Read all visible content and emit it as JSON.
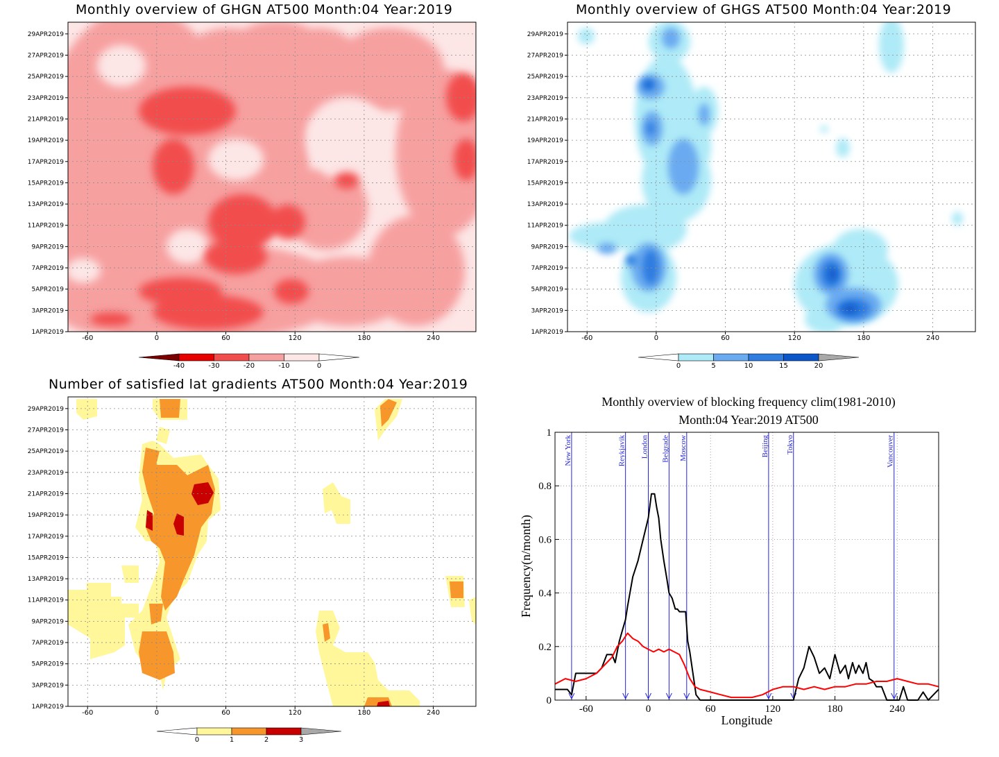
{
  "panels": {
    "ghgn": {
      "title": "Monthly overview of GHGN AT500 Month:04 Year:2019",
      "colorbar": {
        "labels": [
          "-40",
          "-30",
          "-20",
          "-10",
          "0"
        ],
        "colors": [
          "#7a0000",
          "#e60000",
          "#f24d4d",
          "#f7a0a0",
          "#fde6e6",
          "#ffffff"
        ]
      }
    },
    "ghgs": {
      "title": "Monthly overview of GHGS AT500 Month:04 Year:2019",
      "colorbar": {
        "labels": [
          "0",
          "5",
          "10",
          "15",
          "20"
        ],
        "colors": [
          "#ffffff",
          "#aeeaf7",
          "#6aaaf0",
          "#2f7de0",
          "#0b56c8",
          "#a8a8a8"
        ]
      }
    },
    "gradients": {
      "title": "Number of satisfied lat gradients AT500 Month:04 Year:2019",
      "colorbar": {
        "labels": [
          "0",
          "1",
          "2",
          "3"
        ],
        "colors": [
          "#ffffff",
          "#fff799",
          "#f7962a",
          "#c80000",
          "#a8a8a8"
        ]
      }
    },
    "frequency": {
      "title_line1": "Monthly overview of blocking frequency clim(1981-2010)",
      "title_line2": "Month:04 Year:2019  AT500"
    }
  },
  "hovmoller_axes": {
    "y_ticks": [
      "1APR2019",
      "3APR2019",
      "5APR2019",
      "7APR2019",
      "9APR2019",
      "11APR2019",
      "13APR2019",
      "15APR2019",
      "17APR2019",
      "19APR2019",
      "21APR2019",
      "23APR2019",
      "25APR2019",
      "27APR2019",
      "29APR2019"
    ],
    "x_ticks": [
      "-60",
      "0",
      "60",
      "120",
      "180",
      "240"
    ],
    "x_tick_values": [
      -60,
      0,
      60,
      120,
      180,
      240
    ],
    "x_range": [
      -77,
      277
    ]
  },
  "chart_data": [
    {
      "type": "heatmap",
      "title": "Monthly overview of GHGN AT500 Month:04 Year:2019",
      "x_range": [
        -77,
        277
      ],
      "y_range": [
        "1APR2019",
        "30APR2019"
      ],
      "levels": [
        -40,
        -30,
        -20,
        -10,
        0
      ],
      "note_values": "shading mostly between -20 and 0, with -30 to -20 patches"
    },
    {
      "type": "heatmap",
      "title": "Monthly overview of GHGS AT500 Month:04 Year:2019",
      "x_range": [
        -77,
        277
      ],
      "y_range": [
        "1APR2019",
        "30APR2019"
      ],
      "levels": [
        0,
        5,
        10,
        15,
        20
      ]
    },
    {
      "type": "heatmap",
      "title": "Number of satisfied lat gradients AT500 Month:04 Year:2019",
      "x_range": [
        -77,
        277
      ],
      "y_range": [
        "1APR2019",
        "30APR2019"
      ],
      "levels": [
        0,
        1,
        2,
        3
      ]
    },
    {
      "type": "line",
      "title": "Monthly overview of blocking frequency clim(1981-2010)",
      "subtitle": "Month:04 Year:2019  AT500",
      "xlabel": "Longitude",
      "ylabel": "Frequency(n/month)",
      "xlim": [
        -90,
        280
      ],
      "ylim": [
        0,
        1
      ],
      "x_ticks": [
        -60,
        0,
        60,
        120,
        180,
        240
      ],
      "y_ticks": [
        0,
        0.2,
        0.4,
        0.6,
        0.8,
        1
      ],
      "y_tick_labels": [
        "0",
        "0.2",
        "0.4",
        "0.6",
        "0.8",
        "1"
      ],
      "grid": true,
      "cities": [
        {
          "name": "New York",
          "lon": -74
        },
        {
          "name": "Reykjavik",
          "lon": -22
        },
        {
          "name": "London",
          "lon": 0
        },
        {
          "name": "Belgrade",
          "lon": 20
        },
        {
          "name": "Moscow",
          "lon": 37
        },
        {
          "name": "Beijing",
          "lon": 116
        },
        {
          "name": "Tokyo",
          "lon": 140
        },
        {
          "name": "Vancouver",
          "lon": 237
        }
      ],
      "series": [
        {
          "color": "#000000",
          "x": [
            -90,
            -78,
            -74,
            -70,
            -60,
            -50,
            -45,
            -40,
            -35,
            -32,
            -30,
            -28,
            -25,
            -22,
            -20,
            -15,
            -10,
            -5,
            0,
            3,
            6,
            8,
            10,
            12,
            15,
            18,
            20,
            23,
            26,
            28,
            30,
            33,
            36,
            38,
            40,
            43,
            46,
            50,
            60,
            80,
            100,
            110,
            120,
            135,
            140,
            145,
            150,
            155,
            160,
            165,
            170,
            175,
            180,
            185,
            190,
            193,
            197,
            200,
            203,
            207,
            210,
            213,
            217,
            220,
            225,
            230,
            235,
            238,
            242,
            246,
            250,
            255,
            260,
            265,
            270,
            275,
            280
          ],
          "y": [
            0.04,
            0.04,
            0.02,
            0.1,
            0.1,
            0.1,
            0.12,
            0.17,
            0.17,
            0.14,
            0.18,
            0.22,
            0.26,
            0.3,
            0.35,
            0.46,
            0.52,
            0.6,
            0.68,
            0.77,
            0.77,
            0.72,
            0.68,
            0.6,
            0.52,
            0.45,
            0.4,
            0.38,
            0.34,
            0.34,
            0.33,
            0.33,
            0.33,
            0.22,
            0.18,
            0.1,
            0.02,
            0.0,
            0.0,
            0.0,
            0.0,
            0.0,
            0.0,
            0.0,
            0.0,
            0.08,
            0.12,
            0.2,
            0.16,
            0.1,
            0.12,
            0.08,
            0.17,
            0.1,
            0.13,
            0.08,
            0.14,
            0.1,
            0.13,
            0.1,
            0.14,
            0.08,
            0.07,
            0.05,
            0.05,
            0.0,
            0.0,
            0.0,
            0.0,
            0.05,
            0.0,
            0.0,
            0.0,
            0.03,
            0.0,
            0.02,
            0.04
          ]
        },
        {
          "color": "#ff0000",
          "x": [
            -90,
            -80,
            -70,
            -60,
            -50,
            -40,
            -35,
            -30,
            -25,
            -20,
            -15,
            -10,
            -5,
            0,
            5,
            10,
            15,
            20,
            25,
            30,
            35,
            40,
            45,
            50,
            60,
            70,
            80,
            90,
            100,
            110,
            120,
            130,
            140,
            150,
            160,
            170,
            180,
            190,
            200,
            210,
            220,
            230,
            240,
            250,
            260,
            270,
            280
          ],
          "y": [
            0.06,
            0.08,
            0.07,
            0.08,
            0.1,
            0.14,
            0.16,
            0.2,
            0.22,
            0.25,
            0.23,
            0.22,
            0.2,
            0.19,
            0.18,
            0.19,
            0.18,
            0.19,
            0.18,
            0.17,
            0.13,
            0.08,
            0.05,
            0.04,
            0.03,
            0.02,
            0.01,
            0.01,
            0.01,
            0.02,
            0.04,
            0.05,
            0.05,
            0.04,
            0.05,
            0.04,
            0.05,
            0.05,
            0.06,
            0.06,
            0.07,
            0.07,
            0.08,
            0.07,
            0.06,
            0.06,
            0.05
          ]
        }
      ]
    }
  ]
}
